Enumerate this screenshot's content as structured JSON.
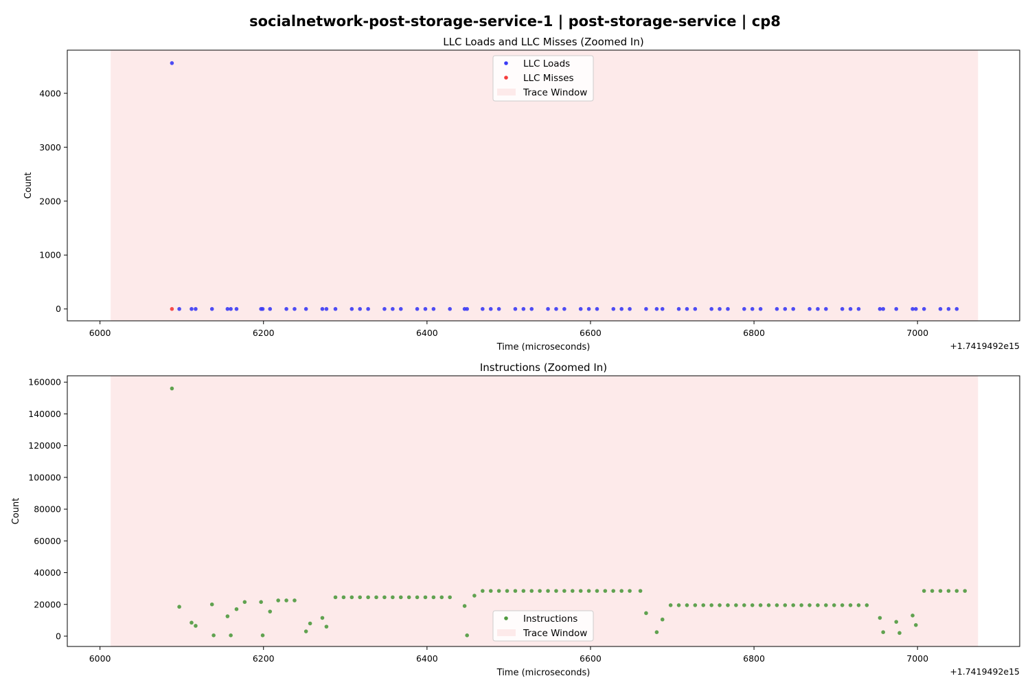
{
  "figure": {
    "suptitle": "socialnetwork-post-storage-service-1    |    post-storage-service    |    cp8"
  },
  "colors": {
    "loads": "#3b3bf5",
    "misses": "#f53b3b",
    "instructions": "#4f9a3f",
    "trace_window": "#fdeaea"
  },
  "chart_data": [
    {
      "type": "scatter",
      "title": "LLC Loads and LLC Misses (Zoomed In)",
      "xlabel": "Time (microseconds)",
      "ylabel": "Count",
      "x_offset_label": "+1.7419492e15",
      "xlim": [
        5960,
        7125
      ],
      "ylim": [
        -220,
        4800
      ],
      "xticks": [
        6000,
        6200,
        6400,
        6600,
        6800,
        7000
      ],
      "yticks": [
        0,
        1000,
        2000,
        3000,
        4000
      ],
      "grid": false,
      "legend_position": "top-center",
      "trace_window": {
        "label": "Trace Window",
        "x_start": 6013,
        "x_end": 7074
      },
      "series": [
        {
          "name": "LLC Loads",
          "color_key": "loads",
          "points": [
            [
              6088,
              4560
            ],
            [
              6097,
              0
            ],
            [
              6112,
              0
            ],
            [
              6117,
              0
            ],
            [
              6137,
              0
            ],
            [
              6156,
              0
            ],
            [
              6160,
              0
            ],
            [
              6167,
              0
            ],
            [
              6197,
              0
            ],
            [
              6199,
              0
            ],
            [
              6208,
              0
            ],
            [
              6228,
              0
            ],
            [
              6238,
              0
            ],
            [
              6252,
              0
            ],
            [
              6272,
              0
            ],
            [
              6277,
              0
            ],
            [
              6288,
              0
            ],
            [
              6308,
              0
            ],
            [
              6318,
              0
            ],
            [
              6328,
              0
            ],
            [
              6348,
              0
            ],
            [
              6358,
              0
            ],
            [
              6368,
              0
            ],
            [
              6388,
              0
            ],
            [
              6398,
              0
            ],
            [
              6408,
              0
            ],
            [
              6428,
              0
            ],
            [
              6446,
              0
            ],
            [
              6449,
              0
            ],
            [
              6468,
              0
            ],
            [
              6478,
              0
            ],
            [
              6488,
              0
            ],
            [
              6508,
              0
            ],
            [
              6518,
              0
            ],
            [
              6528,
              0
            ],
            [
              6548,
              0
            ],
            [
              6558,
              0
            ],
            [
              6568,
              0
            ],
            [
              6588,
              0
            ],
            [
              6598,
              0
            ],
            [
              6608,
              0
            ],
            [
              6628,
              0
            ],
            [
              6638,
              0
            ],
            [
              6648,
              0
            ],
            [
              6668,
              0
            ],
            [
              6681,
              0
            ],
            [
              6688,
              0
            ],
            [
              6708,
              0
            ],
            [
              6718,
              0
            ],
            [
              6728,
              0
            ],
            [
              6748,
              0
            ],
            [
              6758,
              0
            ],
            [
              6768,
              0
            ],
            [
              6788,
              0
            ],
            [
              6798,
              0
            ],
            [
              6808,
              0
            ],
            [
              6828,
              0
            ],
            [
              6838,
              0
            ],
            [
              6848,
              0
            ],
            [
              6868,
              0
            ],
            [
              6878,
              0
            ],
            [
              6888,
              0
            ],
            [
              6908,
              0
            ],
            [
              6918,
              0
            ],
            [
              6928,
              0
            ],
            [
              6954,
              0
            ],
            [
              6958,
              0
            ],
            [
              6974,
              0
            ],
            [
              6994,
              0
            ],
            [
              6998,
              0
            ],
            [
              7008,
              0
            ],
            [
              7028,
              0
            ],
            [
              7038,
              0
            ],
            [
              7048,
              0
            ]
          ]
        },
        {
          "name": "LLC Misses",
          "color_key": "misses",
          "points": [
            [
              6088,
              0
            ]
          ]
        }
      ]
    },
    {
      "type": "scatter",
      "title": "Instructions (Zoomed In)",
      "xlabel": "Time (microseconds)",
      "ylabel": "Count",
      "x_offset_label": "+1.7419492e15",
      "xlim": [
        5960,
        7125
      ],
      "ylim": [
        -6500,
        164000
      ],
      "xticks": [
        6000,
        6200,
        6400,
        6600,
        6800,
        7000
      ],
      "yticks": [
        0,
        20000,
        40000,
        60000,
        80000,
        100000,
        120000,
        140000,
        160000
      ],
      "grid": false,
      "legend_position": "bottom-center",
      "trace_window": {
        "label": "Trace Window",
        "x_start": 6013,
        "x_end": 7074
      },
      "series": [
        {
          "name": "Instructions",
          "color_key": "instructions",
          "points": [
            [
              6088,
              156000
            ],
            [
              6097,
              18500
            ],
            [
              6112,
              8500
            ],
            [
              6117,
              6500
            ],
            [
              6137,
              20000
            ],
            [
              6139,
              500
            ],
            [
              6156,
              12500
            ],
            [
              6160,
              500
            ],
            [
              6167,
              17000
            ],
            [
              6177,
              21500
            ],
            [
              6197,
              21500
            ],
            [
              6199,
              500
            ],
            [
              6208,
              15500
            ],
            [
              6218,
              22500
            ],
            [
              6228,
              22500
            ],
            [
              6238,
              22500
            ],
            [
              6252,
              3000
            ],
            [
              6257,
              8000
            ],
            [
              6272,
              11500
            ],
            [
              6277,
              6000
            ],
            [
              6288,
              24500
            ],
            [
              6298,
              24500
            ],
            [
              6308,
              24500
            ],
            [
              6318,
              24500
            ],
            [
              6328,
              24500
            ],
            [
              6338,
              24500
            ],
            [
              6348,
              24500
            ],
            [
              6358,
              24500
            ],
            [
              6368,
              24500
            ],
            [
              6378,
              24500
            ],
            [
              6388,
              24500
            ],
            [
              6398,
              24500
            ],
            [
              6408,
              24500
            ],
            [
              6418,
              24500
            ],
            [
              6428,
              24500
            ],
            [
              6446,
              19000
            ],
            [
              6449,
              500
            ],
            [
              6458,
              25500
            ],
            [
              6468,
              28500
            ],
            [
              6478,
              28500
            ],
            [
              6488,
              28500
            ],
            [
              6498,
              28500
            ],
            [
              6508,
              28500
            ],
            [
              6518,
              28500
            ],
            [
              6528,
              28500
            ],
            [
              6538,
              28500
            ],
            [
              6548,
              28500
            ],
            [
              6558,
              28500
            ],
            [
              6568,
              28500
            ],
            [
              6578,
              28500
            ],
            [
              6588,
              28500
            ],
            [
              6598,
              28500
            ],
            [
              6608,
              28500
            ],
            [
              6618,
              28500
            ],
            [
              6628,
              28500
            ],
            [
              6638,
              28500
            ],
            [
              6648,
              28500
            ],
            [
              6661,
              28500
            ],
            [
              6668,
              14500
            ],
            [
              6681,
              2500
            ],
            [
              6688,
              10500
            ],
            [
              6698,
              19500
            ],
            [
              6708,
              19500
            ],
            [
              6718,
              19500
            ],
            [
              6728,
              19500
            ],
            [
              6738,
              19500
            ],
            [
              6748,
              19500
            ],
            [
              6758,
              19500
            ],
            [
              6768,
              19500
            ],
            [
              6778,
              19500
            ],
            [
              6788,
              19500
            ],
            [
              6798,
              19500
            ],
            [
              6808,
              19500
            ],
            [
              6818,
              19500
            ],
            [
              6828,
              19500
            ],
            [
              6838,
              19500
            ],
            [
              6848,
              19500
            ],
            [
              6858,
              19500
            ],
            [
              6868,
              19500
            ],
            [
              6878,
              19500
            ],
            [
              6888,
              19500
            ],
            [
              6898,
              19500
            ],
            [
              6908,
              19500
            ],
            [
              6918,
              19500
            ],
            [
              6928,
              19500
            ],
            [
              6938,
              19500
            ],
            [
              6954,
              11500
            ],
            [
              6958,
              2500
            ],
            [
              6974,
              9000
            ],
            [
              6978,
              2000
            ],
            [
              6994,
              13000
            ],
            [
              6998,
              7000
            ],
            [
              7008,
              28500
            ],
            [
              7018,
              28500
            ],
            [
              7028,
              28500
            ],
            [
              7038,
              28500
            ],
            [
              7048,
              28500
            ],
            [
              7058,
              28500
            ]
          ]
        }
      ]
    }
  ]
}
